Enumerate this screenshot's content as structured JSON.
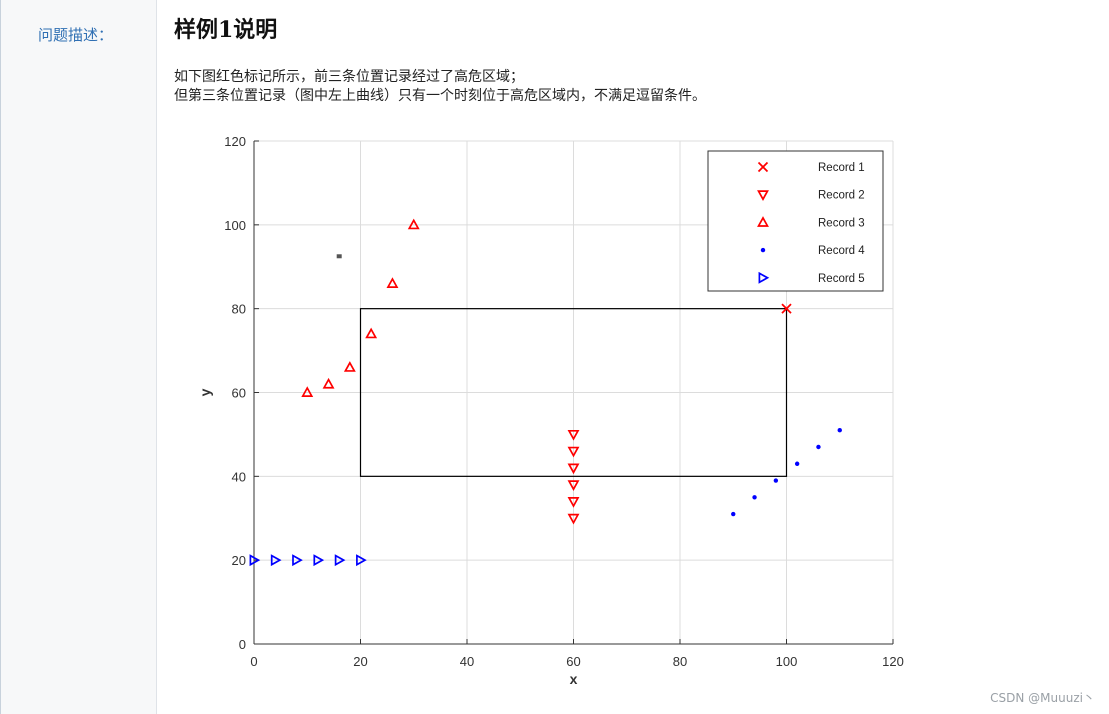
{
  "sidebar": {
    "label": "问题描述："
  },
  "main": {
    "title": "样例1说明",
    "desc_lines": [
      "如下图红色标记所示，前三条位置记录经过了高危区域；",
      "但第三条位置记录（图中左上曲线）只有一个时刻位于高危区域内，不满足逗留条件。"
    ]
  },
  "watermark": "CSDN @Muuuzi丶",
  "chart_data": {
    "type": "scatter",
    "title": "",
    "xlabel": "x",
    "ylabel": "y",
    "xlim": [
      0,
      120
    ],
    "ylim": [
      0,
      120
    ],
    "xticks": [
      0,
      20,
      40,
      60,
      80,
      100,
      120
    ],
    "yticks": [
      0,
      20,
      40,
      60,
      80,
      100,
      120
    ],
    "grid": true,
    "legend_position": "top-right",
    "region": {
      "x0": 20,
      "y0": 40,
      "x1": 100,
      "y1": 80,
      "color": "#000000"
    },
    "stray_marker": {
      "x": 16,
      "y": 92.5,
      "color": "#555555"
    },
    "series": [
      {
        "name": "Record 1",
        "marker": "x",
        "color": "#ff0000",
        "x": [
          100
        ],
        "y": [
          80
        ]
      },
      {
        "name": "Record 2",
        "marker": "triangle-down",
        "color": "#ff0000",
        "x": [
          60,
          60,
          60,
          60,
          60,
          60
        ],
        "y": [
          50,
          46,
          42,
          38,
          34,
          30
        ]
      },
      {
        "name": "Record 3",
        "marker": "triangle-up",
        "color": "#ff0000",
        "x": [
          10,
          14,
          18,
          22,
          26,
          30
        ],
        "y": [
          60,
          62,
          66,
          74,
          86,
          100
        ]
      },
      {
        "name": "Record 4",
        "marker": "dot",
        "color": "#0000ff",
        "x": [
          90,
          94,
          98,
          102,
          106,
          110
        ],
        "y": [
          31,
          35,
          39,
          43,
          47,
          51
        ]
      },
      {
        "name": "Record 5",
        "marker": "triangle-right",
        "color": "#0000ff",
        "x": [
          0,
          4,
          8,
          12,
          16,
          20
        ],
        "y": [
          20,
          20,
          20,
          20,
          20,
          20
        ]
      }
    ]
  }
}
